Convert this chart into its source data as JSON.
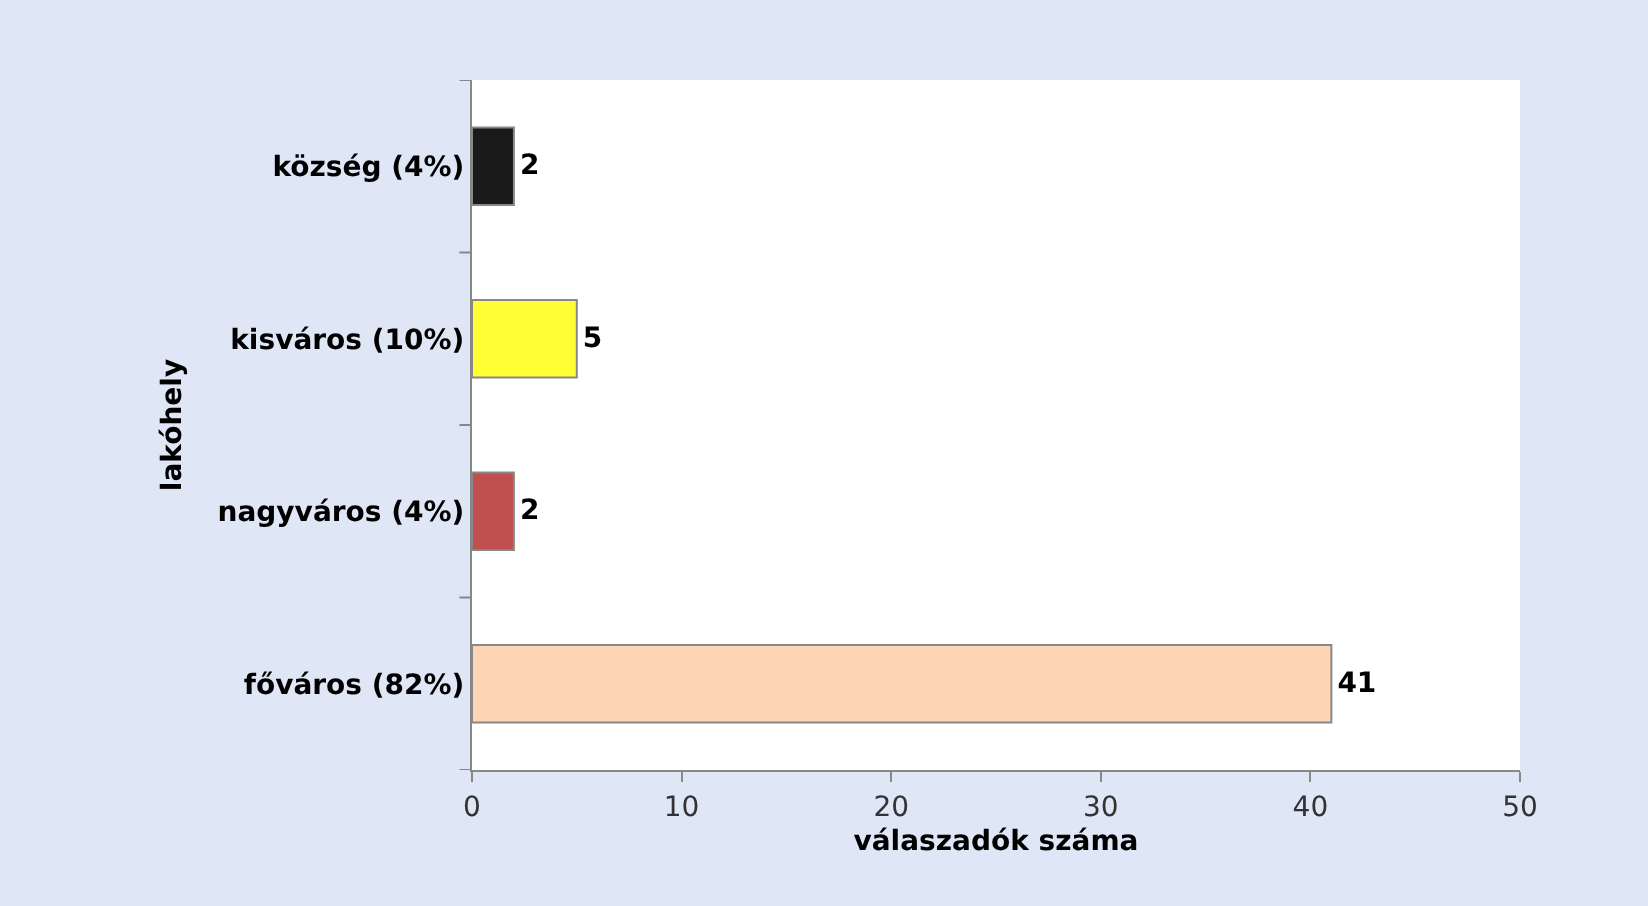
{
  "chart_data": {
    "type": "bar",
    "orientation": "horizontal",
    "categories": [
      "község (4%)",
      "kisváros (10%)",
      "nagyváros (4%)",
      "főváros (82%)"
    ],
    "values": [
      2,
      5,
      2,
      41
    ],
    "colors": [
      "#1a1a1a",
      "#ffff33",
      "#c0504d",
      "#fbd5b5"
    ],
    "xlim": [
      0,
      50
    ],
    "xticks": [
      0,
      10,
      20,
      30,
      40,
      50
    ],
    "xlabel": "válaszadók száma",
    "ylabel": "lakóhely",
    "data_labels": true
  }
}
